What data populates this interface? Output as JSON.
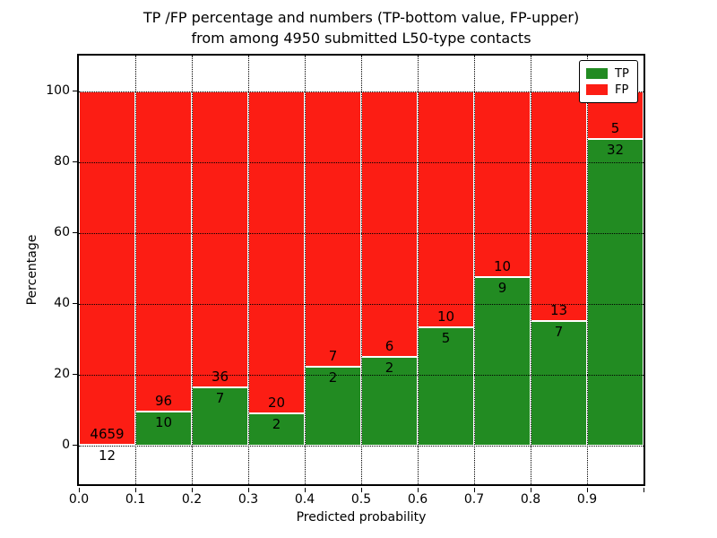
{
  "chart_data": {
    "type": "bar",
    "stacked": true,
    "normalized_to_percent": true,
    "title": "TP /FP percentage and numbers (TP-bottom value, FP-upper)\nfrom among 4950 submitted L50-type contacts",
    "xlabel": "Predicted probability",
    "ylabel": "Percentage",
    "total_submitted_contacts": 4950,
    "contact_type": "L50",
    "categories": [
      "0.0-0.1",
      "0.1-0.2",
      "0.2-0.3",
      "0.3-0.4",
      "0.4-0.5",
      "0.5-0.6",
      "0.6-0.7",
      "0.7-0.8",
      "0.8-0.9",
      "0.9-1.0"
    ],
    "series": [
      {
        "name": "TP",
        "color": "#228b22",
        "counts": [
          12,
          10,
          7,
          2,
          2,
          2,
          5,
          9,
          7,
          32
        ]
      },
      {
        "name": "FP",
        "color": "#fc1d14",
        "counts": [
          4659,
          96,
          36,
          20,
          7,
          6,
          10,
          10,
          13,
          5
        ]
      }
    ],
    "tp_percent": [
      0.26,
      9.43,
      16.28,
      9.09,
      22.22,
      25.0,
      33.33,
      47.37,
      35.0,
      86.49
    ],
    "x_tick_labels": [
      "0.0",
      "0.1",
      "0.2",
      "0.3",
      "0.4",
      "0.5",
      "0.6",
      "0.7",
      "0.8",
      "0.9"
    ],
    "y_ticks": [
      0,
      20,
      40,
      60,
      80,
      100
    ],
    "xlim": [
      0.0,
      1.0
    ],
    "ylim": [
      -11,
      110
    ],
    "grid": "dotted-black-on-top",
    "bar_edge_color": "#ffffff",
    "legend": {
      "position": "upper right"
    }
  }
}
